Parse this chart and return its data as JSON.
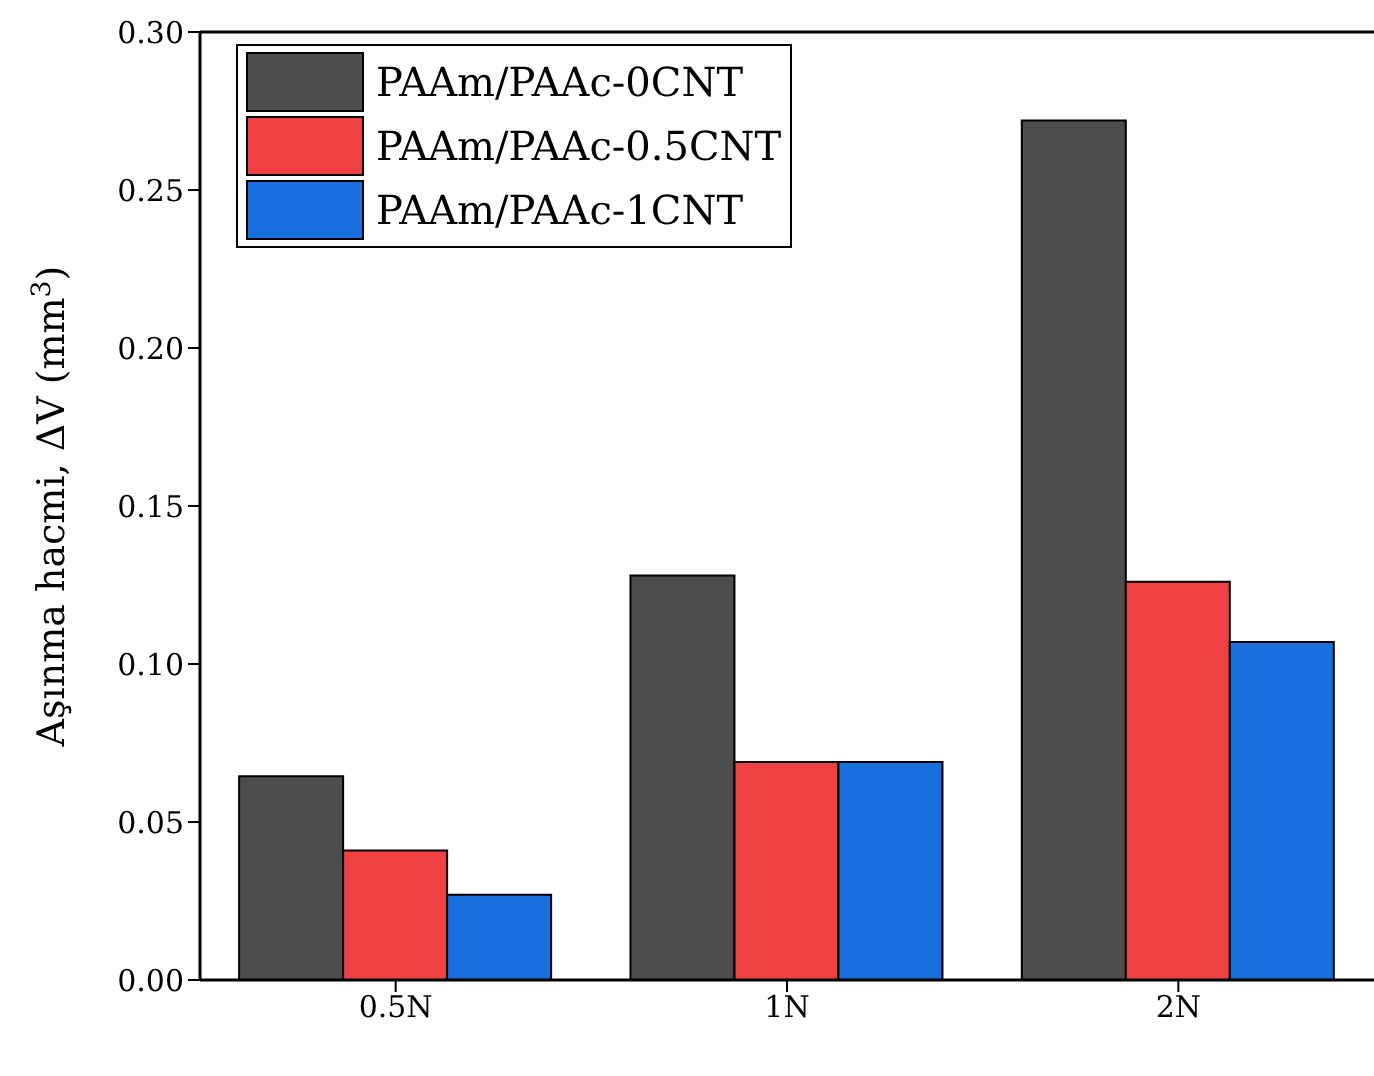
{
  "chart_data": {
    "type": "bar",
    "ylabel": "Aşınma hacmi, ΔV (mm$^{3}$)",
    "categories": [
      "0.5N",
      "1N",
      "2N"
    ],
    "series": [
      {
        "name": "PAAm/PAAc-0CNT",
        "color": "#4d4d4d",
        "values": [
          0.0645,
          0.128,
          0.272
        ]
      },
      {
        "name": "PAAm/PAAc-0.5CNT",
        "color": "#ef4141",
        "values": [
          0.041,
          0.069,
          0.126
        ]
      },
      {
        "name": "PAAm/PAAc-1CNT",
        "color": "#1a6fdf",
        "values": [
          0.027,
          0.069,
          0.107
        ]
      }
    ],
    "ylim": [
      0,
      0.3
    ],
    "yticks": [
      {
        "value": 0,
        "label": "0.00"
      },
      {
        "value": 0.05,
        "label": "0.05"
      },
      {
        "value": 0.1,
        "label": "0.10"
      },
      {
        "value": 0.15,
        "label": "0.15"
      },
      {
        "value": 0.2,
        "label": "0.20"
      },
      {
        "value": 0.25,
        "label": "0.25"
      },
      {
        "value": 0.3,
        "label": "0.30"
      }
    ],
    "grid": false,
    "legend": "top left"
  }
}
